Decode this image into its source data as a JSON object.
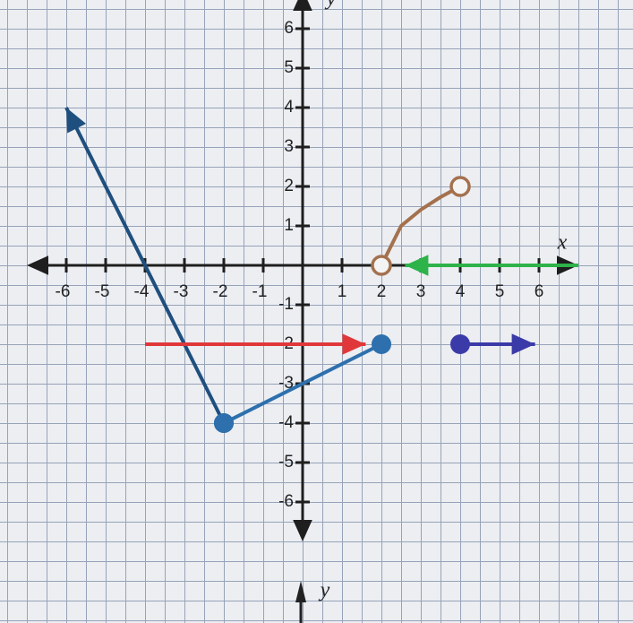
{
  "chart_data": {
    "type": "line",
    "x_label": "x",
    "y_label": "y",
    "lower_y_label": "y",
    "xlim": [
      -7,
      7
    ],
    "ylim": [
      -7,
      7
    ],
    "xticks": [
      -6,
      -5,
      -4,
      -3,
      -2,
      -1,
      1,
      2,
      3,
      4,
      5,
      6
    ],
    "yticks": [
      -6,
      -5,
      -4,
      -3,
      -2,
      -1,
      1,
      2,
      3,
      4,
      5,
      6
    ],
    "grid": true,
    "axis_color": "#1e1e1e",
    "series": [
      {
        "color": "#1f4f7e",
        "x": [
          -2,
          -6
        ],
        "values": [
          -4,
          4
        ],
        "start_marker": "closed",
        "end_marker": "arrow"
      },
      {
        "color": "#2d70ad",
        "x": [
          -2,
          2
        ],
        "values": [
          -4,
          -2
        ],
        "start_marker": "closed",
        "end_marker": "closed"
      },
      {
        "color": "#a4714e",
        "x": [
          2,
          2.5,
          3,
          3.5,
          4
        ],
        "values": [
          0,
          1,
          1.41,
          1.73,
          2
        ],
        "start_marker": "open",
        "end_marker": "open"
      },
      {
        "color": "#2db34a",
        "x": [
          7,
          2.6
        ],
        "values": [
          0,
          0
        ],
        "start_marker": "none",
        "end_marker": "arrow"
      },
      {
        "color": "#e0383a",
        "x": [
          -4,
          1.6
        ],
        "values": [
          -2,
          -2
        ],
        "start_marker": "none",
        "end_marker": "arrow"
      },
      {
        "color": "#3a3aa8",
        "x": [
          4,
          5.9
        ],
        "values": [
          -2,
          -2
        ],
        "start_marker": "closed",
        "end_marker": "arrow"
      }
    ]
  }
}
